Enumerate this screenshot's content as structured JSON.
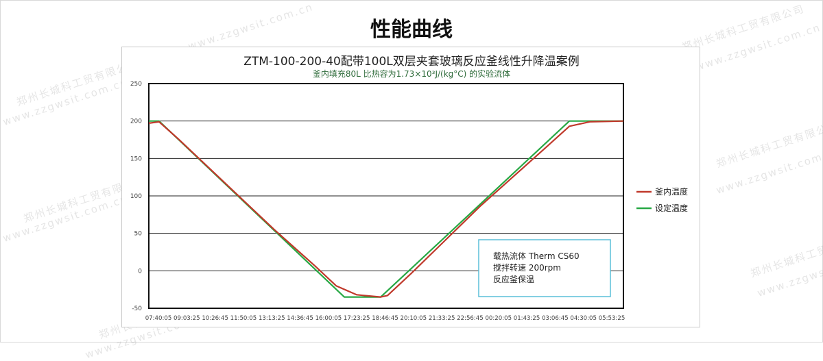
{
  "page": {
    "title": "性能曲线"
  },
  "watermark": {
    "company": "郑州长城科工贸有限公司",
    "site": "www.zzgwsit.com.cn"
  },
  "chart_data": {
    "type": "line",
    "title": "ZTM-100-200-40配带100L双层夹套玻璃反应釜线性升降温案例",
    "subtitle": "釜内填充80L 比热容为1.73×10³J/(kg°C) 的实验流体",
    "xlabel": "",
    "ylabel": "",
    "ylim": [
      -50,
      250
    ],
    "yticks": [
      250,
      200,
      150,
      100,
      50,
      0,
      -50
    ],
    "xlim": [
      "07:12:00",
      "06:28:00"
    ],
    "xticks": [
      "07:40:05",
      "09:03:25",
      "10:26:45",
      "11:50:05",
      "13:13:25",
      "14:36:45",
      "16:00:05",
      "17:23:25",
      "18:46:45",
      "20:10:05",
      "21:33:25",
      "22:56:45",
      "00:20:05",
      "01:43:25",
      "03:06:45",
      "04:30:05",
      "05:53:25"
    ],
    "grid": "horizontal",
    "legend_position": "right",
    "series": [
      {
        "name": "釜内温度",
        "color": "#c0392b",
        "x": [
          "07:12",
          "07:42",
          "08:39",
          "13:21",
          "15:22",
          "16:23",
          "17:23",
          "18:34",
          "18:54",
          "20:05",
          "23:26",
          "02:48",
          "03:49",
          "04:49",
          "06:28"
        ],
        "y": [
          197,
          199,
          176,
          55,
          6,
          -20,
          -32,
          -35,
          -33,
          -3,
          86,
          168,
          193,
          199,
          200
        ]
      },
      {
        "name": "设定温度",
        "color": "#27a844",
        "x": [
          "07:12",
          "07:42",
          "16:47",
          "18:34",
          "03:49",
          "06:28"
        ],
        "y": [
          200,
          200,
          -35,
          -35,
          200,
          200
        ]
      }
    ],
    "annotation": {
      "lines": [
        "载热流体 Therm  CS60",
        "搅拌转速 200rpm",
        "反应釜保温"
      ],
      "border_color": "#5bbfd8"
    }
  }
}
